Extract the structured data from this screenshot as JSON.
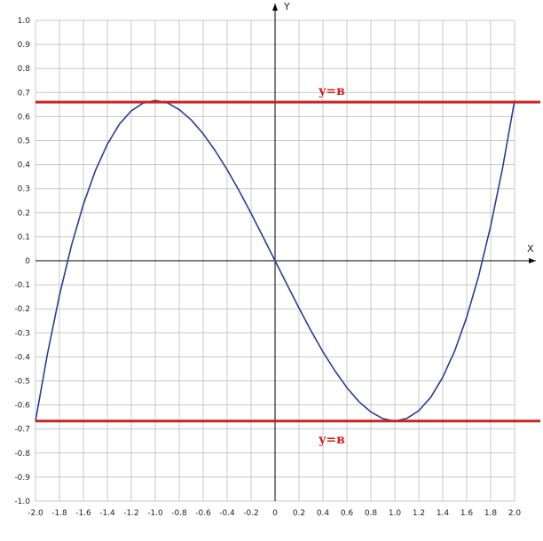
{
  "chart_data": {
    "type": "line",
    "title": "",
    "xlabel": "X",
    "ylabel": "Y",
    "xlim": [
      -2.0,
      2.0
    ],
    "ylim": [
      -1.0,
      1.0
    ],
    "grid": true,
    "x_ticks": [
      "-2.0",
      "-1.8",
      "-1.6",
      "-1.4",
      "-1.2",
      "-1.0",
      "-0.8",
      "-0.6",
      "-0.4",
      "-0.2",
      "0",
      "0.2",
      "0.4",
      "0.6",
      "0.8",
      "1.0",
      "1.2",
      "1.4",
      "1.6",
      "1.8",
      "2.0"
    ],
    "y_ticks": [
      "1.0",
      "0.9",
      "0.8",
      "0.7",
      "0.6",
      "0.5",
      "0.4",
      "0.3",
      "0.2",
      "0.1",
      "0",
      "-0.1",
      "-0.2",
      "-0.3",
      "-0.4",
      "-0.5",
      "-0.6",
      "-0.7",
      "-0.8",
      "-0.9",
      "-1.0"
    ],
    "series": [
      {
        "color": "#2a3f8f",
        "x": [
          -2.0,
          -1.9,
          -1.8,
          -1.7,
          -1.6,
          -1.5,
          -1.4,
          -1.3,
          -1.2,
          -1.1,
          -1.0,
          -0.9,
          -0.8,
          -0.7,
          -0.6,
          -0.5,
          -0.4,
          -0.3,
          -0.2,
          -0.1,
          0.0,
          0.1,
          0.2,
          0.3,
          0.4,
          0.5,
          0.6,
          0.7,
          0.8,
          0.9,
          1.0,
          1.1,
          1.2,
          1.3,
          1.4,
          1.5,
          1.6,
          1.7,
          1.8,
          1.9,
          2.0
        ],
        "y": [
          -0.667,
          -0.387,
          -0.144,
          0.063,
          0.235,
          0.375,
          0.485,
          0.568,
          0.624,
          0.656,
          0.667,
          0.657,
          0.629,
          0.586,
          0.528,
          0.458,
          0.379,
          0.291,
          0.197,
          0.099,
          0.0,
          -0.099,
          -0.197,
          -0.291,
          -0.379,
          -0.458,
          -0.528,
          -0.586,
          -0.629,
          -0.657,
          -0.667,
          -0.656,
          -0.624,
          -0.568,
          -0.485,
          -0.375,
          -0.235,
          -0.063,
          0.144,
          0.387,
          0.667
        ]
      }
    ],
    "reference_lines": [
      {
        "y": 0.66,
        "label": "y=в",
        "color": "#cc2222"
      },
      {
        "y": -0.667,
        "label": "y=в",
        "color": "#cc2222"
      }
    ]
  }
}
